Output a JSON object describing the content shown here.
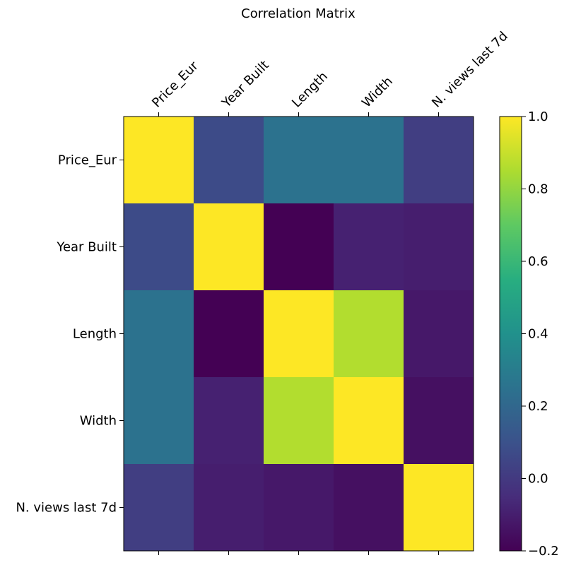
{
  "chart_data": {
    "type": "heatmap",
    "title": "Correlation Matrix",
    "x_labels": [
      "Price_Eur",
      "Year Built",
      "Length",
      "Width",
      "N. views last 7d"
    ],
    "y_labels": [
      "Price_Eur",
      "Year Built",
      "Length",
      "Width",
      "N. views last 7d"
    ],
    "values": [
      [
        1.0,
        0.07,
        0.25,
        0.25,
        0.02
      ],
      [
        0.07,
        1.0,
        -0.2,
        -0.09,
        -0.1
      ],
      [
        0.25,
        -0.2,
        1.0,
        0.86,
        -0.12
      ],
      [
        0.25,
        -0.09,
        0.86,
        1.0,
        -0.15
      ],
      [
        0.02,
        -0.1,
        -0.12,
        -0.15,
        1.0
      ]
    ],
    "colormap": "viridis",
    "color_range": [
      -0.2,
      1.0
    ],
    "colorbar_ticks": [
      "-0.2",
      "0.0",
      "0.2",
      "0.4",
      "0.6",
      "0.8",
      "1.0"
    ],
    "x_tick_position": "top",
    "grid": false
  }
}
